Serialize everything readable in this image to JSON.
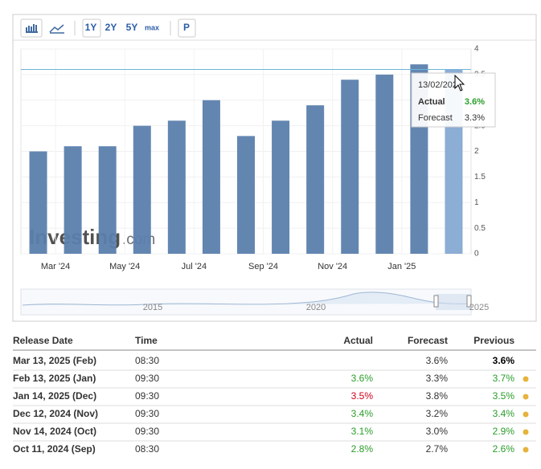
{
  "toolbar": {
    "buttons": [
      "1Y",
      "2Y",
      "5Y",
      "max",
      "P"
    ]
  },
  "chart_data": {
    "type": "bar",
    "categories": [
      null,
      "Mar '24",
      null,
      "May '24",
      null,
      "Jul '24",
      null,
      "Sep '24",
      null,
      "Nov '24",
      null,
      "Jan '25",
      null
    ],
    "values": [
      2.0,
      2.1,
      2.1,
      2.5,
      2.6,
      3.0,
      2.3,
      2.6,
      2.9,
      3.4,
      3.5,
      3.7,
      3.6
    ],
    "color": "#5b7fad",
    "highlight_color": "#86a9d2",
    "reference_line": 3.6,
    "ylim": [
      0,
      4
    ],
    "yticks": [
      0,
      0.5,
      1,
      1.5,
      2,
      2.5,
      3,
      3.5,
      4
    ],
    "grid": true,
    "watermark": [
      "Investing",
      ".com"
    ],
    "tooltip": {
      "date": "13/02/202",
      "actual_label": "Actual",
      "actual": "3.6%",
      "forecast_label": "Forecast",
      "forecast": "3.3%"
    },
    "navigator_labels": [
      "2015",
      "2020",
      "2025"
    ]
  },
  "table": {
    "headers": [
      "Release Date",
      "Time",
      "Actual",
      "Forecast",
      "Previous"
    ],
    "rows": [
      {
        "cells": [
          "Mar 13, 2025 (Feb)",
          "08:30",
          null,
          "3.6%",
          "3.6%"
        ],
        "actual_color": null,
        "previous_color": "#000000",
        "dot": false
      },
      {
        "cells": [
          "Feb 13, 2025 (Jan)",
          "09:30",
          "3.6%",
          "3.3%",
          "3.7%"
        ],
        "actual_color": "#2a9d2a",
        "previous_color": "#2a9d2a",
        "dot": true
      },
      {
        "cells": [
          "Jan 14, 2025 (Dec)",
          "09:30",
          "3.5%",
          "3.8%",
          "3.5%"
        ],
        "actual_color": "#d0021b",
        "previous_color": "#2a9d2a",
        "dot": true
      },
      {
        "cells": [
          "Dec 12, 2024 (Nov)",
          "09:30",
          "3.4%",
          "3.2%",
          "3.4%"
        ],
        "actual_color": "#2a9d2a",
        "previous_color": "#2a9d2a",
        "dot": true
      },
      {
        "cells": [
          "Nov 14, 2024 (Oct)",
          "09:30",
          "3.1%",
          "3.0%",
          "2.9%"
        ],
        "actual_color": "#2a9d2a",
        "previous_color": "#2a9d2a",
        "dot": true
      },
      {
        "cells": [
          "Oct 11, 2024 (Sep)",
          "08:30",
          "2.8%",
          "2.7%",
          "2.6%"
        ],
        "actual_color": "#2a9d2a",
        "previous_color": "#2a9d2a",
        "dot": true
      }
    ]
  }
}
